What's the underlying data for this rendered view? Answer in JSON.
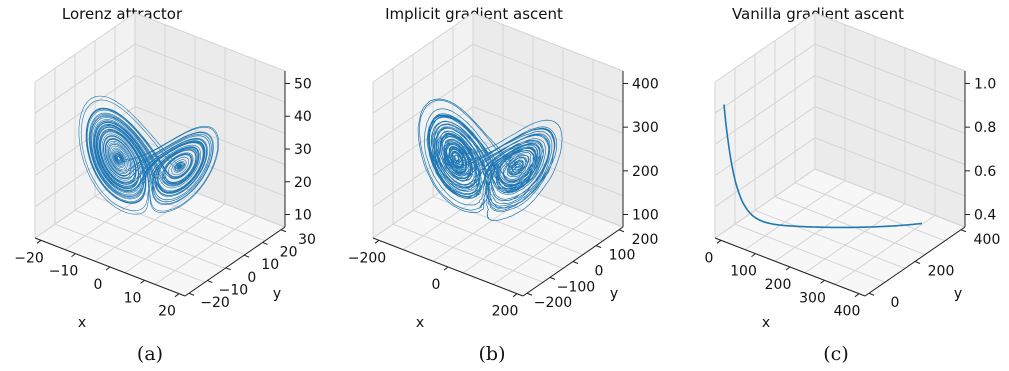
{
  "chart_data": [
    {
      "type": "line3d",
      "title": "Lorenz attractor",
      "caption": "(a)",
      "xlabel": "x",
      "ylabel": "y",
      "zlabel": "",
      "xlim": [
        -20,
        20
      ],
      "ylim": [
        -25,
        30
      ],
      "zlim": [
        0,
        55
      ],
      "xticks": [
        "−20",
        "−10",
        "0",
        "10",
        "20"
      ],
      "yticks": [
        "−20",
        "−10",
        "0",
        "10",
        "20",
        "30"
      ],
      "zticks": [
        "10",
        "20",
        "30",
        "40",
        "50"
      ],
      "series": [
        {
          "kind": "lorenz",
          "x_range": [
            -20,
            20
          ],
          "y_range": [
            -25,
            28
          ],
          "z_range": [
            2,
            50
          ]
        }
      ],
      "color": "#1f77b4",
      "grid": true
    },
    {
      "type": "line3d",
      "title": "Implicit gradient ascent",
      "caption": "(b)",
      "xlabel": "x",
      "ylabel": "y",
      "zlabel": "",
      "xlim": [
        -250,
        250
      ],
      "ylim": [
        -250,
        250
      ],
      "zlim": [
        0,
        420
      ],
      "xticks": [
        "−200",
        "0",
        "200"
      ],
      "yticks": [
        "−200",
        "−100",
        "0",
        "100",
        "200"
      ],
      "zticks": [
        "100",
        "200",
        "300",
        "400"
      ],
      "series": [
        {
          "kind": "lorenz-noisy",
          "x_range": [
            -230,
            230
          ],
          "y_range": [
            -230,
            230
          ],
          "z_range": [
            20,
            400
          ]
        }
      ],
      "color": "#1f77b4",
      "grid": true
    },
    {
      "type": "line3d",
      "title": "Vanilla gradient ascent",
      "caption": "(c)",
      "xlabel": "x",
      "ylabel": "y",
      "zlabel": "",
      "xlim": [
        0,
        450
      ],
      "ylim": [
        0,
        500
      ],
      "zlim": [
        0.3,
        1.0
      ],
      "xticks": [
        "0",
        "100",
        "200",
        "300",
        "400"
      ],
      "yticks": [
        "0",
        "200",
        "400"
      ],
      "zticks": [
        "0.4",
        "0.6",
        "0.8",
        "1.0"
      ],
      "series": [
        {
          "kind": "decay-curve",
          "start_z": 0.9,
          "min_z": 0.37,
          "end_z": 0.42
        }
      ],
      "color": "#1f77b4",
      "grid": true
    }
  ]
}
